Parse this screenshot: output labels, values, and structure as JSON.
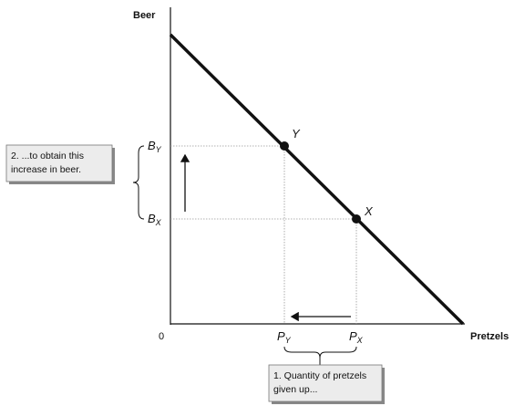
{
  "axes": {
    "y_label": "Beer",
    "x_label": "Pretzels",
    "origin": "0"
  },
  "points": [
    {
      "label": "Y"
    },
    {
      "label": "X"
    }
  ],
  "y_levels": [
    {
      "letter": "B",
      "sub": "Y"
    },
    {
      "letter": "B",
      "sub": "X"
    }
  ],
  "x_levels": [
    {
      "letter": "P",
      "sub": "Y"
    },
    {
      "letter": "P",
      "sub": "X"
    }
  ],
  "notes": [
    {
      "lines": [
        "2. ...to obtain this",
        "increase in beer."
      ]
    },
    {
      "lines": [
        "1. Quantity of pretzels",
        "given up..."
      ]
    }
  ]
}
